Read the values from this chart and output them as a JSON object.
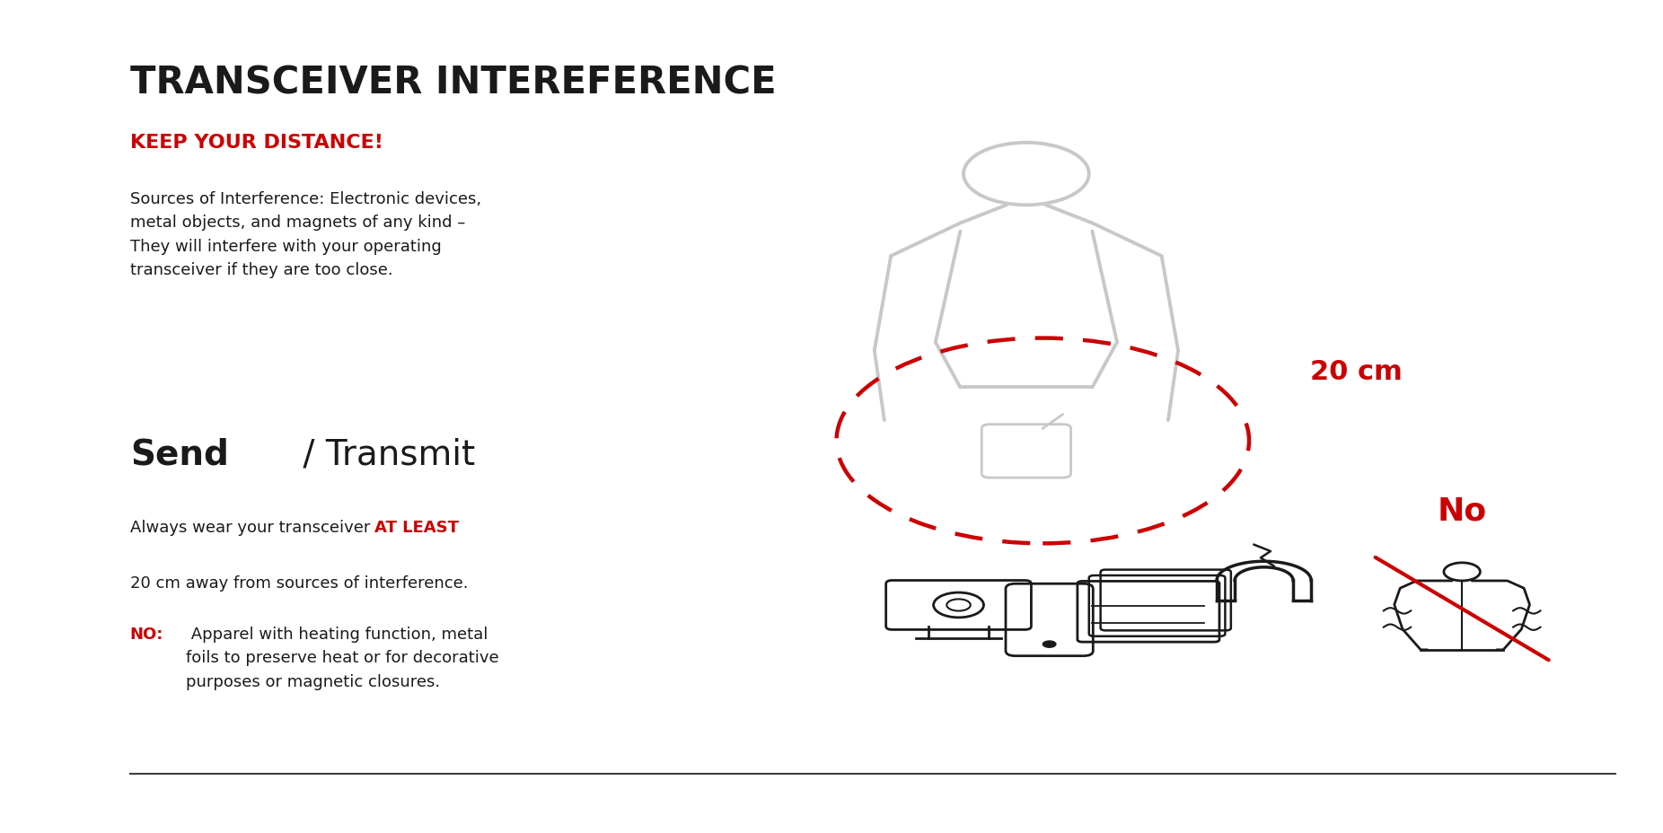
{
  "title": "TRANSCEIVER INTEREFERENCE",
  "subtitle": "KEEP YOUR DISTANCE!",
  "body_text_1": "Sources of Interference: Electronic devices,\nmetal objects, and magnets of any kind –\nThey will interfere with your operating\ntransceiver if they are too close.",
  "section_title_bold": "Send",
  "section_title_normal": " / Transmit",
  "body_text_2_pre": "Always wear your transceiver ",
  "body_text_2_bold_red": "AT LEAST",
  "body_text_2_line2": "20 cm away from sources of interference.",
  "no_label_bold_red": "NO:",
  "body_text_3_post": " Apparel with heating function, metal\nfoils to preserve heat or for decorative\npurposes or magnetic closures.",
  "distance_label": "20 cm",
  "no_label": "No",
  "bg_color": "#ffffff",
  "title_color": "#1a1a1a",
  "red_color": "#cc0000",
  "body_color": "#1a1a1a",
  "figure_color": "#c8c8c8",
  "icon_color": "#1a1a1a",
  "bottom_line_color": "#404040"
}
